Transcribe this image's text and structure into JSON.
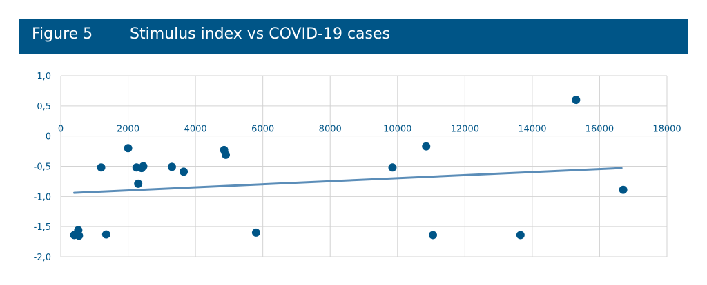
{
  "header": {
    "figure_label": "Figure 5",
    "title": "Stimulus index vs COVID-19 cases"
  },
  "colors": {
    "header_bg": "#005587",
    "point": "#005587",
    "trendline": "#5b8db8",
    "grid": "#d3d3d3",
    "tick_text": "#005587"
  },
  "chart_data": {
    "type": "scatter",
    "title": "Stimulus index vs COVID-19 cases",
    "xlabel": "",
    "ylabel": "",
    "xlim": [
      0,
      18000
    ],
    "ylim": [
      -2.0,
      1.0
    ],
    "grid": true,
    "x_ticks": [
      "0",
      "2000",
      "4000",
      "6000",
      "8000",
      "10000",
      "12000",
      "14000",
      "16000",
      "18000"
    ],
    "y_ticks": [
      "1,0",
      "0,5",
      "0",
      "-0,5",
      "-1,0",
      "-1,5",
      "-2,0"
    ],
    "points": [
      {
        "x": 400,
        "y": -1.64
      },
      {
        "x": 520,
        "y": -1.56
      },
      {
        "x": 540,
        "y": -1.65
      },
      {
        "x": 1200,
        "y": -0.52
      },
      {
        "x": 1350,
        "y": -1.63
      },
      {
        "x": 2000,
        "y": -0.2
      },
      {
        "x": 2250,
        "y": -0.52
      },
      {
        "x": 2300,
        "y": -0.79
      },
      {
        "x": 2400,
        "y": -0.53
      },
      {
        "x": 2450,
        "y": -0.5
      },
      {
        "x": 3300,
        "y": -0.51
      },
      {
        "x": 3650,
        "y": -0.59
      },
      {
        "x": 4850,
        "y": -0.23
      },
      {
        "x": 4900,
        "y": -0.31
      },
      {
        "x": 5800,
        "y": -1.6
      },
      {
        "x": 9850,
        "y": -0.52
      },
      {
        "x": 10850,
        "y": -0.17
      },
      {
        "x": 11050,
        "y": -1.64
      },
      {
        "x": 13650,
        "y": -1.64
      },
      {
        "x": 15300,
        "y": 0.6
      },
      {
        "x": 16700,
        "y": -0.89
      }
    ],
    "trendline": {
      "x": [
        400,
        16650
      ],
      "y": [
        -0.94,
        -0.53
      ]
    }
  }
}
